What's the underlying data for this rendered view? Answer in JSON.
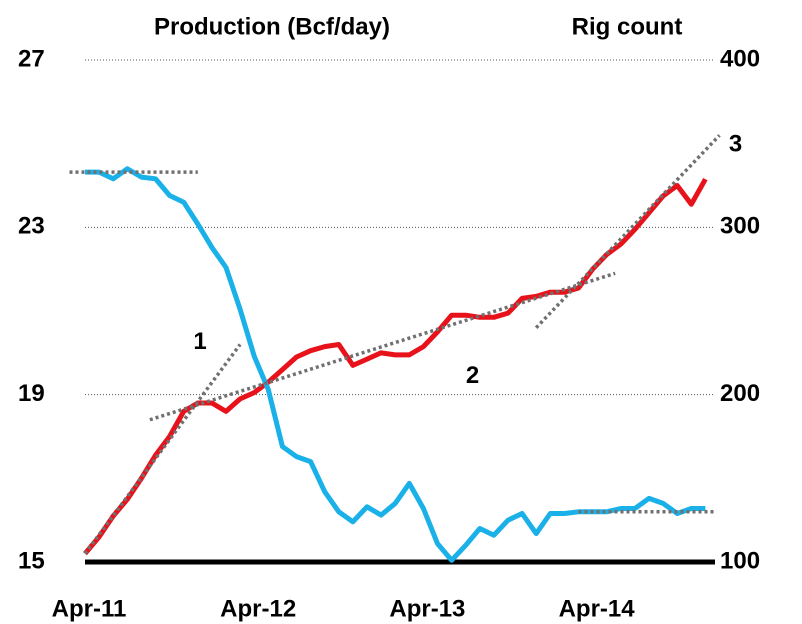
{
  "chart_data": {
    "type": "line",
    "y_title": "Production (Bcf/day)",
    "y2_title": "Rig count",
    "categories": [
      "Apr-11",
      null,
      null,
      null,
      null,
      null,
      null,
      null,
      null,
      null,
      null,
      null,
      "Apr-12",
      null,
      null,
      null,
      null,
      null,
      null,
      null,
      null,
      null,
      null,
      null,
      "Apr-13",
      null,
      null,
      null,
      null,
      null,
      null,
      null,
      null,
      null,
      null,
      null,
      "Apr-14",
      null,
      null,
      null,
      null,
      null,
      null,
      null,
      null
    ],
    "series": [
      {
        "name": "Production",
        "color": "#e8121b",
        "axis": "y",
        "values": [
          15.2,
          15.6,
          16.1,
          16.5,
          17.0,
          17.55,
          18.0,
          18.6,
          18.8,
          18.8,
          18.6,
          18.9,
          19.05,
          19.3,
          19.6,
          19.9,
          20.05,
          20.15,
          20.2,
          19.7,
          19.85,
          20.0,
          19.95,
          19.95,
          20.15,
          20.5,
          20.9,
          20.9,
          20.85,
          20.85,
          20.95,
          21.3,
          21.35,
          21.45,
          21.45,
          21.55,
          22.0,
          22.35,
          22.6,
          22.95,
          23.35,
          23.75,
          24.0,
          23.55,
          24.15
        ]
      },
      {
        "name": "Rig count",
        "color": "#1ab0e8",
        "axis": "y2",
        "values": [
          333,
          333,
          329,
          335,
          330,
          329,
          319,
          315,
          302,
          288,
          276,
          251,
          223,
          203,
          169,
          163,
          160,
          142,
          130,
          124,
          133,
          128,
          135,
          147,
          132,
          111,
          101,
          110,
          120,
          116,
          125,
          129,
          117,
          129,
          129,
          130,
          130,
          130,
          132,
          132,
          138,
          135,
          129,
          132,
          132
        ]
      }
    ],
    "trend_lines": [
      {
        "axis": "y",
        "x": [
          0,
          11
        ],
        "y": [
          15.2,
          20.2
        ],
        "label": "1"
      },
      {
        "axis": "y",
        "x": [
          4.6,
          37.6
        ],
        "y": [
          18.4,
          21.9
        ],
        "label": "2"
      },
      {
        "axis": "y",
        "x": [
          32,
          45
        ],
        "y": [
          20.6,
          25.2
        ],
        "label": "3"
      },
      {
        "axis": "y2",
        "x": [
          -1.1,
          8
        ],
        "y": [
          333,
          333
        ]
      },
      {
        "axis": "y2",
        "x": [
          35,
          44.7
        ],
        "y": [
          130,
          130
        ]
      }
    ],
    "trend_color": "#707070",
    "ylim": [
      15,
      27
    ],
    "yticks": [
      15,
      19,
      23,
      27
    ],
    "y2lim": [
      100,
      400
    ],
    "y2ticks": [
      100,
      200,
      300,
      400
    ],
    "grid": true
  }
}
